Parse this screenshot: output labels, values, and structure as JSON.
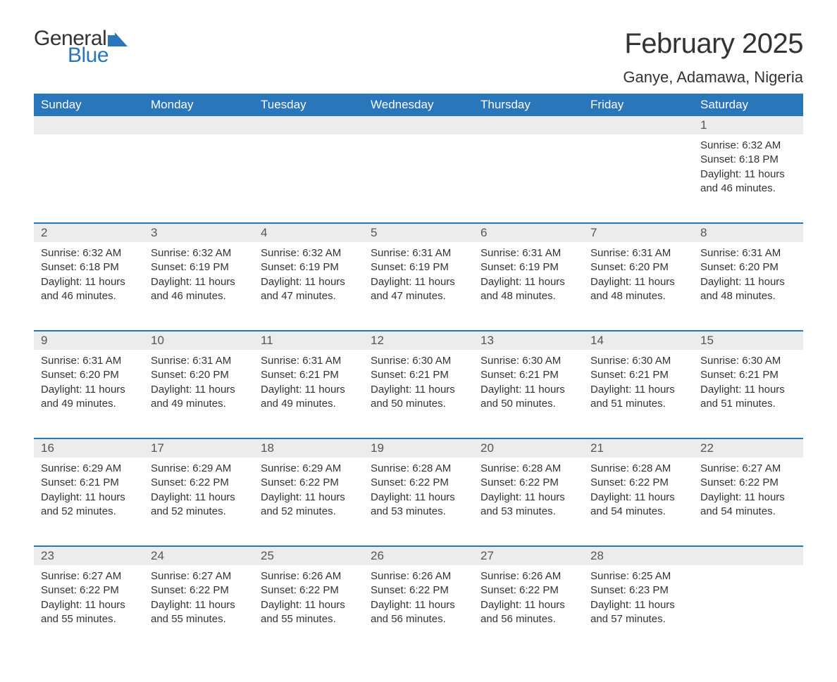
{
  "logo": {
    "text_general": "General",
    "text_blue": "Blue",
    "dark_color": "#333333",
    "blue_color": "#2a76bb"
  },
  "title": "February 2025",
  "location": "Ganye, Adamawa, Nigeria",
  "colors": {
    "header_bg": "#2a76bb",
    "header_text": "#ffffff",
    "daynum_bg": "#ececec",
    "daynum_text": "#555555",
    "body_text": "#333333",
    "row_border": "#2a76bb",
    "page_bg": "#ffffff"
  },
  "fonts": {
    "title_size_pt": 30,
    "location_size_pt": 16,
    "dayname_size_pt": 13,
    "daynum_size_pt": 13,
    "body_size_pt": 11
  },
  "day_names": [
    "Sunday",
    "Monday",
    "Tuesday",
    "Wednesday",
    "Thursday",
    "Friday",
    "Saturday"
  ],
  "weeks": [
    [
      null,
      null,
      null,
      null,
      null,
      null,
      {
        "n": "1",
        "sr": "6:32 AM",
        "ss": "6:18 PM",
        "dl": "11 hours and 46 minutes."
      }
    ],
    [
      {
        "n": "2",
        "sr": "6:32 AM",
        "ss": "6:18 PM",
        "dl": "11 hours and 46 minutes."
      },
      {
        "n": "3",
        "sr": "6:32 AM",
        "ss": "6:19 PM",
        "dl": "11 hours and 46 minutes."
      },
      {
        "n": "4",
        "sr": "6:32 AM",
        "ss": "6:19 PM",
        "dl": "11 hours and 47 minutes."
      },
      {
        "n": "5",
        "sr": "6:31 AM",
        "ss": "6:19 PM",
        "dl": "11 hours and 47 minutes."
      },
      {
        "n": "6",
        "sr": "6:31 AM",
        "ss": "6:19 PM",
        "dl": "11 hours and 48 minutes."
      },
      {
        "n": "7",
        "sr": "6:31 AM",
        "ss": "6:20 PM",
        "dl": "11 hours and 48 minutes."
      },
      {
        "n": "8",
        "sr": "6:31 AM",
        "ss": "6:20 PM",
        "dl": "11 hours and 48 minutes."
      }
    ],
    [
      {
        "n": "9",
        "sr": "6:31 AM",
        "ss": "6:20 PM",
        "dl": "11 hours and 49 minutes."
      },
      {
        "n": "10",
        "sr": "6:31 AM",
        "ss": "6:20 PM",
        "dl": "11 hours and 49 minutes."
      },
      {
        "n": "11",
        "sr": "6:31 AM",
        "ss": "6:21 PM",
        "dl": "11 hours and 49 minutes."
      },
      {
        "n": "12",
        "sr": "6:30 AM",
        "ss": "6:21 PM",
        "dl": "11 hours and 50 minutes."
      },
      {
        "n": "13",
        "sr": "6:30 AM",
        "ss": "6:21 PM",
        "dl": "11 hours and 50 minutes."
      },
      {
        "n": "14",
        "sr": "6:30 AM",
        "ss": "6:21 PM",
        "dl": "11 hours and 51 minutes."
      },
      {
        "n": "15",
        "sr": "6:30 AM",
        "ss": "6:21 PM",
        "dl": "11 hours and 51 minutes."
      }
    ],
    [
      {
        "n": "16",
        "sr": "6:29 AM",
        "ss": "6:21 PM",
        "dl": "11 hours and 52 minutes."
      },
      {
        "n": "17",
        "sr": "6:29 AM",
        "ss": "6:22 PM",
        "dl": "11 hours and 52 minutes."
      },
      {
        "n": "18",
        "sr": "6:29 AM",
        "ss": "6:22 PM",
        "dl": "11 hours and 52 minutes."
      },
      {
        "n": "19",
        "sr": "6:28 AM",
        "ss": "6:22 PM",
        "dl": "11 hours and 53 minutes."
      },
      {
        "n": "20",
        "sr": "6:28 AM",
        "ss": "6:22 PM",
        "dl": "11 hours and 53 minutes."
      },
      {
        "n": "21",
        "sr": "6:28 AM",
        "ss": "6:22 PM",
        "dl": "11 hours and 54 minutes."
      },
      {
        "n": "22",
        "sr": "6:27 AM",
        "ss": "6:22 PM",
        "dl": "11 hours and 54 minutes."
      }
    ],
    [
      {
        "n": "23",
        "sr": "6:27 AM",
        "ss": "6:22 PM",
        "dl": "11 hours and 55 minutes."
      },
      {
        "n": "24",
        "sr": "6:27 AM",
        "ss": "6:22 PM",
        "dl": "11 hours and 55 minutes."
      },
      {
        "n": "25",
        "sr": "6:26 AM",
        "ss": "6:22 PM",
        "dl": "11 hours and 55 minutes."
      },
      {
        "n": "26",
        "sr": "6:26 AM",
        "ss": "6:22 PM",
        "dl": "11 hours and 56 minutes."
      },
      {
        "n": "27",
        "sr": "6:26 AM",
        "ss": "6:22 PM",
        "dl": "11 hours and 56 minutes."
      },
      {
        "n": "28",
        "sr": "6:25 AM",
        "ss": "6:23 PM",
        "dl": "11 hours and 57 minutes."
      },
      null
    ]
  ],
  "labels": {
    "sunrise": "Sunrise:",
    "sunset": "Sunset:",
    "daylight": "Daylight:"
  }
}
